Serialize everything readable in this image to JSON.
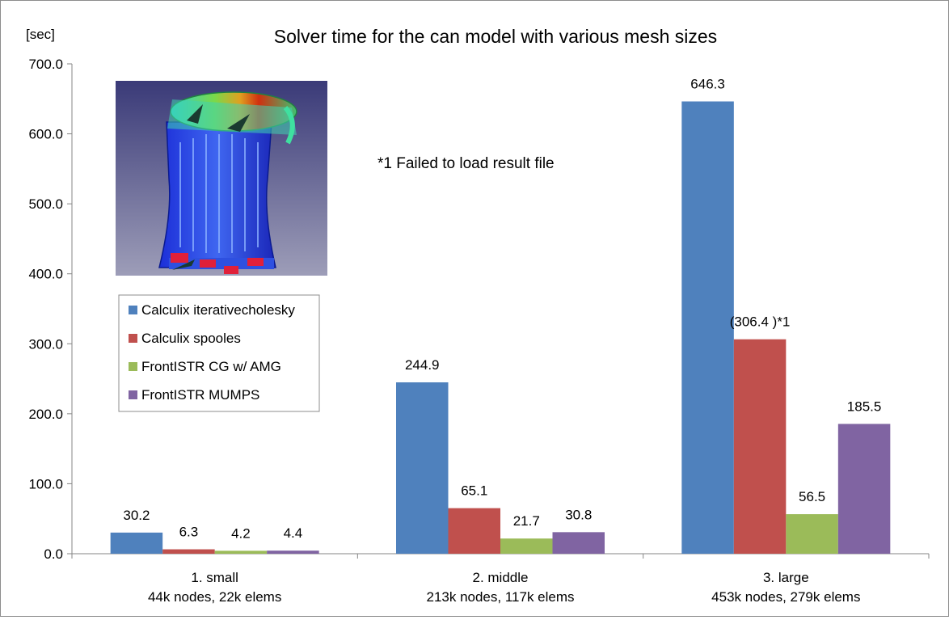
{
  "chart_data": {
    "type": "bar",
    "title": "Solver time for the can model with various mesh sizes",
    "ylabel": "[sec]",
    "ylim": [
      0,
      700
    ],
    "ytick_step": 100,
    "ytick_labels": [
      "0.0",
      "100.0",
      "200.0",
      "300.0",
      "400.0",
      "500.0",
      "600.0",
      "700.0"
    ],
    "grid": false,
    "legend_position": "left",
    "categories": [
      {
        "line1": "1. small",
        "line2": "44k nodes, 22k elems"
      },
      {
        "line1": "2. middle",
        "line2": "213k nodes, 117k elems"
      },
      {
        "line1": "3. large",
        "line2": "453k nodes, 279k elems"
      }
    ],
    "series": [
      {
        "name": "Calculix iterativecholesky",
        "color": "#4f81bd",
        "values": [
          30.2,
          244.9,
          646.3
        ],
        "labels": [
          "30.2",
          "244.9",
          "646.3"
        ]
      },
      {
        "name": "Calculix spooles",
        "color": "#c0504d",
        "values": [
          6.3,
          65.1,
          306.4
        ],
        "labels": [
          "6.3",
          "65.1",
          "(306.4 )*1"
        ]
      },
      {
        "name": "FrontISTR CG w/ AMG",
        "color": "#9bbb59",
        "values": [
          4.2,
          21.7,
          56.5
        ],
        "labels": [
          "4.2",
          "21.7",
          "56.5"
        ]
      },
      {
        "name": "FrontISTR MUMPS",
        "color": "#8064a2",
        "values": [
          4.4,
          30.8,
          185.5
        ],
        "labels": [
          "4.4",
          "30.8",
          "185.5"
        ]
      }
    ],
    "annotation": "*1  Failed to load result file",
    "inset_image": "can-model-render"
  }
}
